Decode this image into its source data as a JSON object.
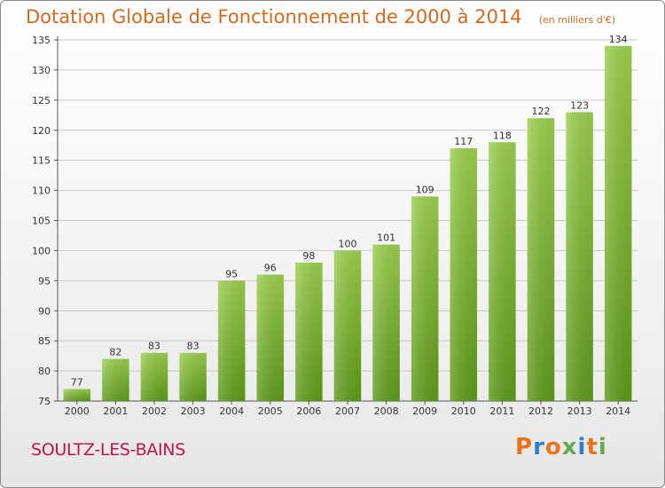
{
  "header": {
    "title": "Dotation Globale de Fonctionnement de 2000 à 2014",
    "subtitle": "(en milliers d'€)"
  },
  "footer": {
    "commune": "SOULTZ-LES-BAINS",
    "logo_text": "Proxiti",
    "logo_colors": [
      "#e8731a",
      "#2f7fc1",
      "#e8731a",
      "#6aa84f",
      "#2f7fc1",
      "#e8731a",
      "#6aa84f"
    ]
  },
  "colors": {
    "bar_light": "#9ccf4e",
    "bar_dark": "#5e9a1a",
    "title": "#d2691e",
    "commune": "#c0154a",
    "grid": "#c8c8c8"
  },
  "chart_data": {
    "type": "bar",
    "title": "Dotation Globale de Fonctionnement de 2000 à 2014",
    "subtitle": "(en milliers d'€)",
    "categories": [
      "2000",
      "2001",
      "2002",
      "2003",
      "2004",
      "2005",
      "2006",
      "2007",
      "2008",
      "2009",
      "2010",
      "2011",
      "2012",
      "2013",
      "2014"
    ],
    "values": [
      77,
      82,
      83,
      83,
      95,
      96,
      98,
      100,
      101,
      109,
      117,
      118,
      122,
      123,
      134
    ],
    "ylim": [
      75,
      135
    ],
    "yticks": [
      75,
      80,
      85,
      90,
      95,
      100,
      105,
      110,
      115,
      120,
      125,
      130,
      135
    ],
    "xlabel": "",
    "ylabel": "",
    "grid": "horizontal"
  }
}
